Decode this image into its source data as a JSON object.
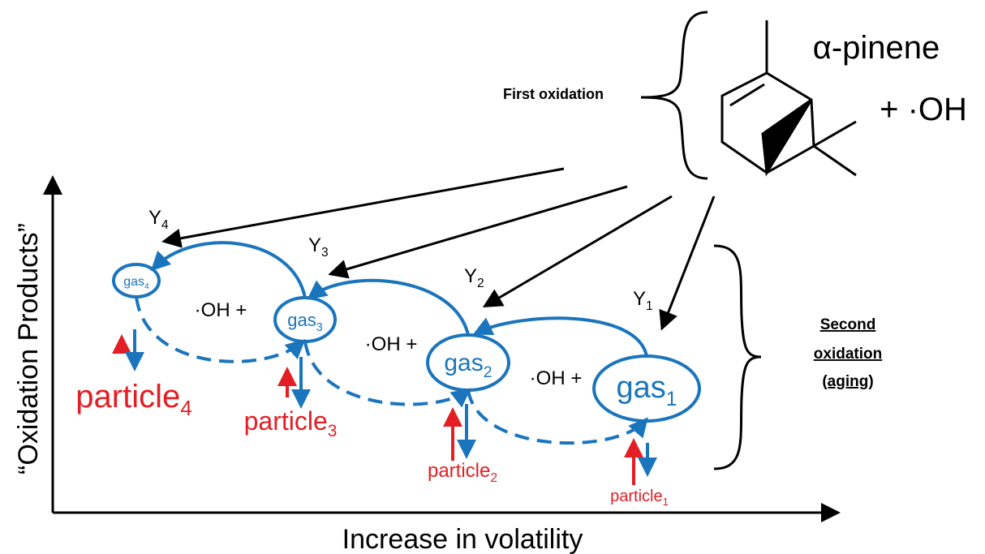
{
  "reactant": {
    "name": "α-pinene",
    "oxidant": "+ ·OH"
  },
  "first_oxidation": "First oxidation",
  "second_oxidation": [
    "Second",
    "oxidation",
    "(aging)"
  ],
  "axes": {
    "y_label": "“Oxidation Products”",
    "x_label": "Increase in volatility"
  },
  "stages": [
    {
      "yield": {
        "label": "Y",
        "subscript": "1"
      },
      "gas": {
        "label": "gas",
        "subscript": "1"
      },
      "particle": {
        "label": "particle",
        "subscript": "1"
      }
    },
    {
      "yield": {
        "label": "Y",
        "subscript": "2"
      },
      "gas": {
        "label": "gas",
        "subscript": "2"
      },
      "particle": {
        "label": "particle",
        "subscript": "2"
      }
    },
    {
      "yield": {
        "label": "Y",
        "subscript": "3"
      },
      "gas": {
        "label": "gas",
        "subscript": "3"
      },
      "particle": {
        "label": "particle",
        "subscript": "3"
      }
    },
    {
      "yield": {
        "label": "Y",
        "subscript": "4"
      },
      "gas": {
        "label": "gas",
        "subscript": "4"
      },
      "particle": {
        "label": "particle",
        "subscript": "4"
      }
    }
  ],
  "oxidant_labels": [
    "·OH +",
    "·OH +",
    "·OH +"
  ]
}
